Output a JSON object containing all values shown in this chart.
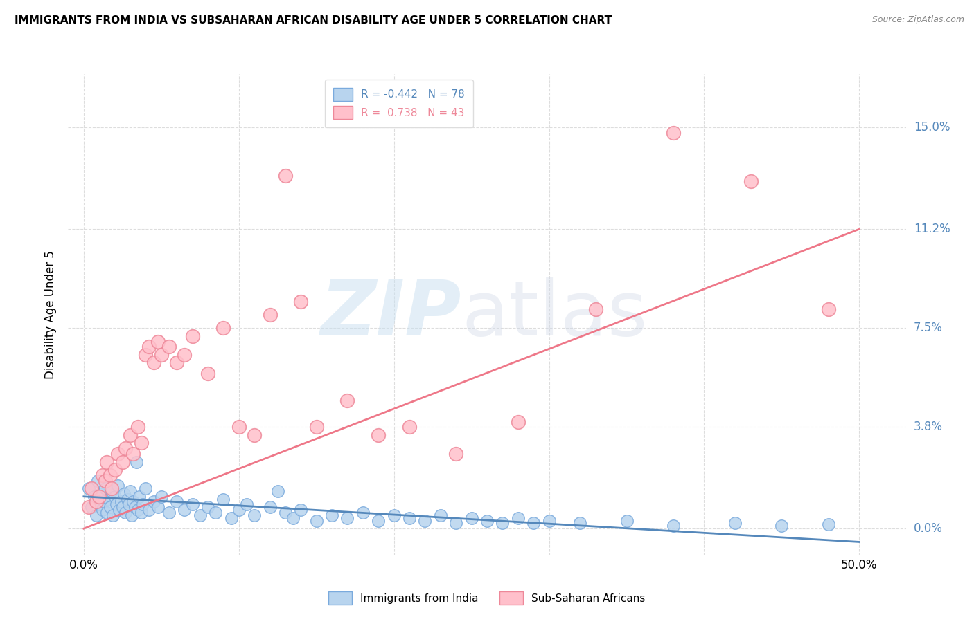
{
  "title": "IMMIGRANTS FROM INDIA VS SUBSAHARAN AFRICAN DISABILITY AGE UNDER 5 CORRELATION CHART",
  "source": "Source: ZipAtlas.com",
  "ylabel": "Disability Age Under 5",
  "ytick_vals": [
    0.0,
    3.8,
    7.5,
    11.2,
    15.0
  ],
  "xtick_vals": [
    0.0,
    10.0,
    20.0,
    30.0,
    40.0,
    50.0
  ],
  "xlim": [
    -1.0,
    53.0
  ],
  "ylim": [
    -1.0,
    17.0
  ],
  "india_color": "#b8d4ee",
  "india_edge_color": "#7aaadd",
  "india_line_color": "#5588bb",
  "africa_color": "#ffc0cb",
  "africa_edge_color": "#ee8899",
  "africa_line_color": "#ee7788",
  "india_R": -0.442,
  "india_N": 78,
  "africa_R": 0.738,
  "africa_N": 43,
  "india_line_x0": 0.0,
  "india_line_y0": 1.2,
  "india_line_x1": 50.0,
  "india_line_y1": -0.5,
  "africa_line_x0": 0.0,
  "africa_line_y0": 0.0,
  "africa_line_x1": 50.0,
  "africa_line_y1": 11.2,
  "india_points": [
    [
      0.3,
      1.5
    ],
    [
      0.5,
      0.8
    ],
    [
      0.7,
      1.2
    ],
    [
      0.8,
      0.5
    ],
    [
      0.9,
      1.8
    ],
    [
      1.0,
      0.9
    ],
    [
      1.1,
      1.3
    ],
    [
      1.2,
      0.7
    ],
    [
      1.3,
      1.0
    ],
    [
      1.4,
      1.5
    ],
    [
      1.5,
      0.6
    ],
    [
      1.6,
      1.1
    ],
    [
      1.7,
      0.8
    ],
    [
      1.8,
      1.4
    ],
    [
      1.9,
      0.5
    ],
    [
      2.0,
      1.2
    ],
    [
      2.1,
      0.9
    ],
    [
      2.2,
      1.6
    ],
    [
      2.3,
      0.7
    ],
    [
      2.4,
      1.0
    ],
    [
      2.5,
      0.8
    ],
    [
      2.6,
      1.3
    ],
    [
      2.7,
      0.6
    ],
    [
      2.8,
      1.1
    ],
    [
      2.9,
      0.9
    ],
    [
      3.0,
      1.4
    ],
    [
      3.1,
      0.5
    ],
    [
      3.2,
      1.0
    ],
    [
      3.3,
      0.8
    ],
    [
      3.4,
      2.5
    ],
    [
      3.5,
      0.7
    ],
    [
      3.6,
      1.2
    ],
    [
      3.7,
      0.6
    ],
    [
      3.8,
      0.9
    ],
    [
      4.0,
      1.5
    ],
    [
      4.2,
      0.7
    ],
    [
      4.5,
      1.0
    ],
    [
      4.8,
      0.8
    ],
    [
      5.0,
      1.2
    ],
    [
      5.5,
      0.6
    ],
    [
      6.0,
      1.0
    ],
    [
      6.5,
      0.7
    ],
    [
      7.0,
      0.9
    ],
    [
      7.5,
      0.5
    ],
    [
      8.0,
      0.8
    ],
    [
      8.5,
      0.6
    ],
    [
      9.0,
      1.1
    ],
    [
      9.5,
      0.4
    ],
    [
      10.0,
      0.7
    ],
    [
      10.5,
      0.9
    ],
    [
      11.0,
      0.5
    ],
    [
      12.0,
      0.8
    ],
    [
      12.5,
      1.4
    ],
    [
      13.0,
      0.6
    ],
    [
      13.5,
      0.4
    ],
    [
      14.0,
      0.7
    ],
    [
      15.0,
      0.3
    ],
    [
      16.0,
      0.5
    ],
    [
      17.0,
      0.4
    ],
    [
      18.0,
      0.6
    ],
    [
      19.0,
      0.3
    ],
    [
      20.0,
      0.5
    ],
    [
      21.0,
      0.4
    ],
    [
      22.0,
      0.3
    ],
    [
      23.0,
      0.5
    ],
    [
      24.0,
      0.2
    ],
    [
      25.0,
      0.4
    ],
    [
      26.0,
      0.3
    ],
    [
      27.0,
      0.2
    ],
    [
      28.0,
      0.4
    ],
    [
      29.0,
      0.2
    ],
    [
      30.0,
      0.3
    ],
    [
      32.0,
      0.2
    ],
    [
      35.0,
      0.3
    ],
    [
      38.0,
      0.1
    ],
    [
      42.0,
      0.2
    ],
    [
      45.0,
      0.1
    ],
    [
      48.0,
      0.15
    ]
  ],
  "africa_points": [
    [
      0.3,
      0.8
    ],
    [
      0.5,
      1.5
    ],
    [
      0.8,
      1.0
    ],
    [
      1.0,
      1.2
    ],
    [
      1.2,
      2.0
    ],
    [
      1.4,
      1.8
    ],
    [
      1.5,
      2.5
    ],
    [
      1.7,
      2.0
    ],
    [
      1.8,
      1.5
    ],
    [
      2.0,
      2.2
    ],
    [
      2.2,
      2.8
    ],
    [
      2.5,
      2.5
    ],
    [
      2.7,
      3.0
    ],
    [
      3.0,
      3.5
    ],
    [
      3.2,
      2.8
    ],
    [
      3.5,
      3.8
    ],
    [
      3.7,
      3.2
    ],
    [
      4.0,
      6.5
    ],
    [
      4.2,
      6.8
    ],
    [
      4.5,
      6.2
    ],
    [
      4.8,
      7.0
    ],
    [
      5.0,
      6.5
    ],
    [
      5.5,
      6.8
    ],
    [
      6.0,
      6.2
    ],
    [
      6.5,
      6.5
    ],
    [
      7.0,
      7.2
    ],
    [
      8.0,
      5.8
    ],
    [
      9.0,
      7.5
    ],
    [
      10.0,
      3.8
    ],
    [
      11.0,
      3.5
    ],
    [
      12.0,
      8.0
    ],
    [
      13.0,
      13.2
    ],
    [
      14.0,
      8.5
    ],
    [
      15.0,
      3.8
    ],
    [
      17.0,
      4.8
    ],
    [
      19.0,
      3.5
    ],
    [
      21.0,
      3.8
    ],
    [
      24.0,
      2.8
    ],
    [
      28.0,
      4.0
    ],
    [
      33.0,
      8.2
    ],
    [
      38.0,
      14.8
    ],
    [
      43.0,
      13.0
    ],
    [
      48.0,
      8.2
    ]
  ],
  "grid_color": "#dddddd",
  "legend_box_color": "#dddddd",
  "ytick_color": "#5588bb",
  "watermark_zip_color": "#c8dff0",
  "watermark_atlas_color": "#d0d8e8"
}
